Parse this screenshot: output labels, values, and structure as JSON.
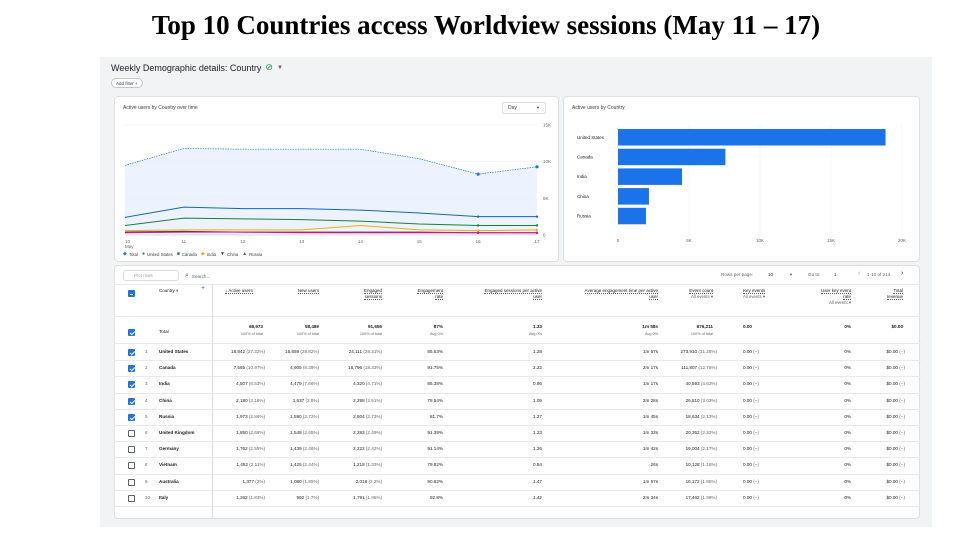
{
  "slide_title": "Top 10 Countries access Worldview sessions (May 11 – 17)",
  "report": {
    "title": "Weekly Demographic details: Country",
    "add_filter": "Add filter +"
  },
  "line_card": {
    "title": "Active users by Country over time",
    "granularity": "Day",
    "y_ticks": [
      "15K",
      "10K",
      "5K",
      "0"
    ],
    "x_ticks": [
      "10",
      "11",
      "12",
      "13",
      "14",
      "15",
      "16",
      "17"
    ],
    "x_sub": "May",
    "legend": [
      "Total",
      "United States",
      "Canada",
      "India",
      "China",
      "Russia"
    ]
  },
  "bar_card": {
    "title": "Active users by Country",
    "x_ticks": [
      "0",
      "5K",
      "10K",
      "15K",
      "20K"
    ]
  },
  "chart_data": [
    {
      "type": "line",
      "title": "Active users by Country over time",
      "x": [
        "10 May",
        "11",
        "12",
        "13",
        "14",
        "15",
        "16",
        "17"
      ],
      "ylim": [
        0,
        15000
      ],
      "series": [
        {
          "name": "Total",
          "values": [
            9500,
            11800,
            11700,
            11700,
            11700,
            10400,
            8300,
            9300
          ],
          "color": "#1a73e8"
        },
        {
          "name": "United States",
          "values": [
            2400,
            3800,
            3600,
            3600,
            3400,
            3000,
            2500,
            2500
          ],
          "color": "#1565c0"
        },
        {
          "name": "Canada",
          "values": [
            1300,
            2300,
            2200,
            2100,
            1900,
            1500,
            1300,
            1300
          ],
          "color": "#188038"
        },
        {
          "name": "India",
          "values": [
            600,
            700,
            700,
            700,
            1300,
            700,
            600,
            700
          ],
          "color": "#f9ab00"
        },
        {
          "name": "China",
          "values": [
            400,
            500,
            400,
            400,
            400,
            400,
            300,
            300
          ],
          "color": "#3c4043"
        },
        {
          "name": "Russia",
          "values": [
            300,
            400,
            400,
            300,
            300,
            300,
            300,
            300
          ],
          "color": "#d01884"
        }
      ],
      "grid": true
    },
    {
      "type": "bar",
      "title": "Active users by Country",
      "categories": [
        "United States",
        "Canada",
        "India",
        "China",
        "Russia"
      ],
      "values": [
        18842,
        7565,
        4507,
        2180,
        1973
      ],
      "xlim": [
        0,
        20000
      ],
      "orientation": "horizontal",
      "color": "#1a73e8"
    }
  ],
  "table": {
    "plot_rows": "Plot rows",
    "search_placeholder": "Search...",
    "rows_per_page_label": "Rows per page:",
    "rows_per_page": "10",
    "goto_label": "Go to:",
    "goto_value": "1",
    "page_info": "1-10 of 214",
    "dimension": "Country",
    "headers": {
      "active_users": "↓ Active users",
      "new_users": "New users",
      "engaged_sessions": [
        "Engaged",
        "sessions"
      ],
      "engagement_rate": [
        "Engagement",
        "rate"
      ],
      "engaged_per_user": [
        "Engaged sessions per active",
        "user"
      ],
      "avg_time": [
        "Average engagement time per active",
        "user"
      ],
      "event_count": "Event count",
      "event_filter": "All events ▾",
      "key_events": "Key events",
      "key_filter": "All events ▾",
      "key_rate": [
        "User key event",
        "rate"
      ],
      "key_rate_filter": "All events ▾",
      "revenue": [
        "Total",
        "revenue"
      ]
    },
    "total": {
      "label": "Total",
      "active_users": "68,973",
      "active_users_sub": "100% of total",
      "new_users": "58,489",
      "new_users_sub": "100% of total",
      "engaged_sessions": "91,656",
      "engaged_sessions_sub": "100% of total",
      "engagement_rate": "87%",
      "engagement_rate_sub": "Avg 0%",
      "engaged_per_user": "1.33",
      "engaged_per_user_sub": "Avg 0%",
      "avg_time": "1m 58s",
      "avg_time_sub": "Avg 0%",
      "event_count": "876,211",
      "event_count_sub": "100% of total",
      "key_events": "0.00",
      "key_rate": "0%",
      "revenue": "$0.00"
    },
    "rows": [
      {
        "n": "1",
        "country": "United States",
        "au": "18,842",
        "au_p": "(27.32%)",
        "nu": "16,859",
        "nu_p": "(28.82%)",
        "es": "24,111",
        "es_p": "(26.31%)",
        "er": "85.53%",
        "epu": "1.28",
        "time": "1m 57s",
        "ev": "273,910",
        "ev_p": "(31.26%)",
        "ke": "0.00",
        "ke_p": "(−)",
        "kr": "0%",
        "rev": "$0.00",
        "rev_p": "(−)",
        "checked": true
      },
      {
        "n": "2",
        "country": "Canada",
        "au": "7,565",
        "au_p": "(10.97%)",
        "nu": "4,905",
        "nu_p": "(8.39%)",
        "es": "16,796",
        "es_p": "(18.33%)",
        "er": "91.75%",
        "epu": "2.22",
        "time": "2m 17s",
        "ev": "111,807",
        "ev_p": "(12.76%)",
        "ke": "0.00",
        "ke_p": "(−)",
        "kr": "0%",
        "rev": "$0.00",
        "rev_p": "(−)",
        "checked": true
      },
      {
        "n": "3",
        "country": "India",
        "au": "4,507",
        "au_p": "(6.53%)",
        "nu": "4,479",
        "nu_p": "(7.66%)",
        "es": "4,320",
        "es_p": "(4.71%)",
        "er": "85.38%",
        "epu": "0.96",
        "time": "1m 17s",
        "ev": "40,593",
        "ev_p": "(4.63%)",
        "ke": "0.00",
        "ke_p": "(−)",
        "kr": "0%",
        "rev": "$0.00",
        "rev_p": "(−)",
        "checked": true
      },
      {
        "n": "4",
        "country": "China",
        "au": "2,180",
        "au_p": "(3.16%)",
        "nu": "1,637",
        "nu_p": "(2.8%)",
        "es": "2,298",
        "es_p": "(2.51%)",
        "er": "78.54%",
        "epu": "1.05",
        "time": "2m 28s",
        "ev": "26,510",
        "ev_p": "(3.03%)",
        "ke": "0.00",
        "ke_p": "(−)",
        "kr": "0%",
        "rev": "$0.00",
        "rev_p": "(−)",
        "checked": true
      },
      {
        "n": "5",
        "country": "Russia",
        "au": "1,973",
        "au_p": "(2.86%)",
        "nu": "1,590",
        "nu_p": "(2.72%)",
        "es": "2,504",
        "es_p": "(2.73%)",
        "er": "81.7%",
        "epu": "1.27",
        "time": "1m 45s",
        "ev": "18,634",
        "ev_p": "(2.13%)",
        "ke": "0.00",
        "ke_p": "(−)",
        "kr": "0%",
        "rev": "$0.00",
        "rev_p": "(−)",
        "checked": true
      },
      {
        "n": "6",
        "country": "United Kingdom",
        "au": "1,850",
        "au_p": "(2.68%)",
        "nu": "1,548",
        "nu_p": "(2.65%)",
        "es": "2,283",
        "es_p": "(2.49%)",
        "er": "91.39%",
        "epu": "1.23",
        "time": "1m 33s",
        "ev": "20,352",
        "ev_p": "(2.32%)",
        "ke": "0.00",
        "ke_p": "(−)",
        "kr": "0%",
        "rev": "$0.00",
        "rev_p": "(−)",
        "checked": false
      },
      {
        "n": "7",
        "country": "Germany",
        "au": "1,762",
        "au_p": "(2.55%)",
        "nu": "1,439",
        "nu_p": "(2.46%)",
        "es": "2,222",
        "es_p": "(2.42%)",
        "er": "91.14%",
        "epu": "1.26",
        "time": "1m 42s",
        "ev": "19,004",
        "ev_p": "(2.17%)",
        "ke": "0.00",
        "ke_p": "(−)",
        "kr": "0%",
        "rev": "$0.00",
        "rev_p": "(−)",
        "checked": false
      },
      {
        "n": "8",
        "country": "Vietnam",
        "au": "1,452",
        "au_p": "(2.11%)",
        "nu": "1,425",
        "nu_p": "(2.44%)",
        "es": "1,218",
        "es_p": "(1.33%)",
        "er": "79.82%",
        "epu": "0.84",
        "time": "26s",
        "ev": "10,128",
        "ev_p": "(1.16%)",
        "ke": "0.00",
        "ke_p": "(−)",
        "kr": "0%",
        "rev": "$0.00",
        "rev_p": "(−)",
        "checked": false
      },
      {
        "n": "9",
        "country": "Australia",
        "au": "1,377",
        "au_p": "(2%)",
        "nu": "1,080",
        "nu_p": "(1.85%)",
        "es": "2,018",
        "es_p": "(2.2%)",
        "er": "90.62%",
        "epu": "1.47",
        "time": "1m 57s",
        "ev": "16,172",
        "ev_p": "(1.85%)",
        "ke": "0.00",
        "ke_p": "(−)",
        "kr": "0%",
        "rev": "$0.00",
        "rev_p": "(−)",
        "checked": false
      },
      {
        "n": "10",
        "country": "Italy",
        "au": "1,262",
        "au_p": "(1.83%)",
        "nu": "992",
        "nu_p": "(1.7%)",
        "es": "1,791",
        "es_p": "(1.95%)",
        "er": "92.8%",
        "epu": "1.42",
        "time": "2m 34s",
        "ev": "17,462",
        "ev_p": "(1.99%)",
        "ke": "0.00",
        "ke_p": "(−)",
        "kr": "0%",
        "rev": "$0.00",
        "rev_p": "(−)",
        "checked": false
      }
    ]
  }
}
